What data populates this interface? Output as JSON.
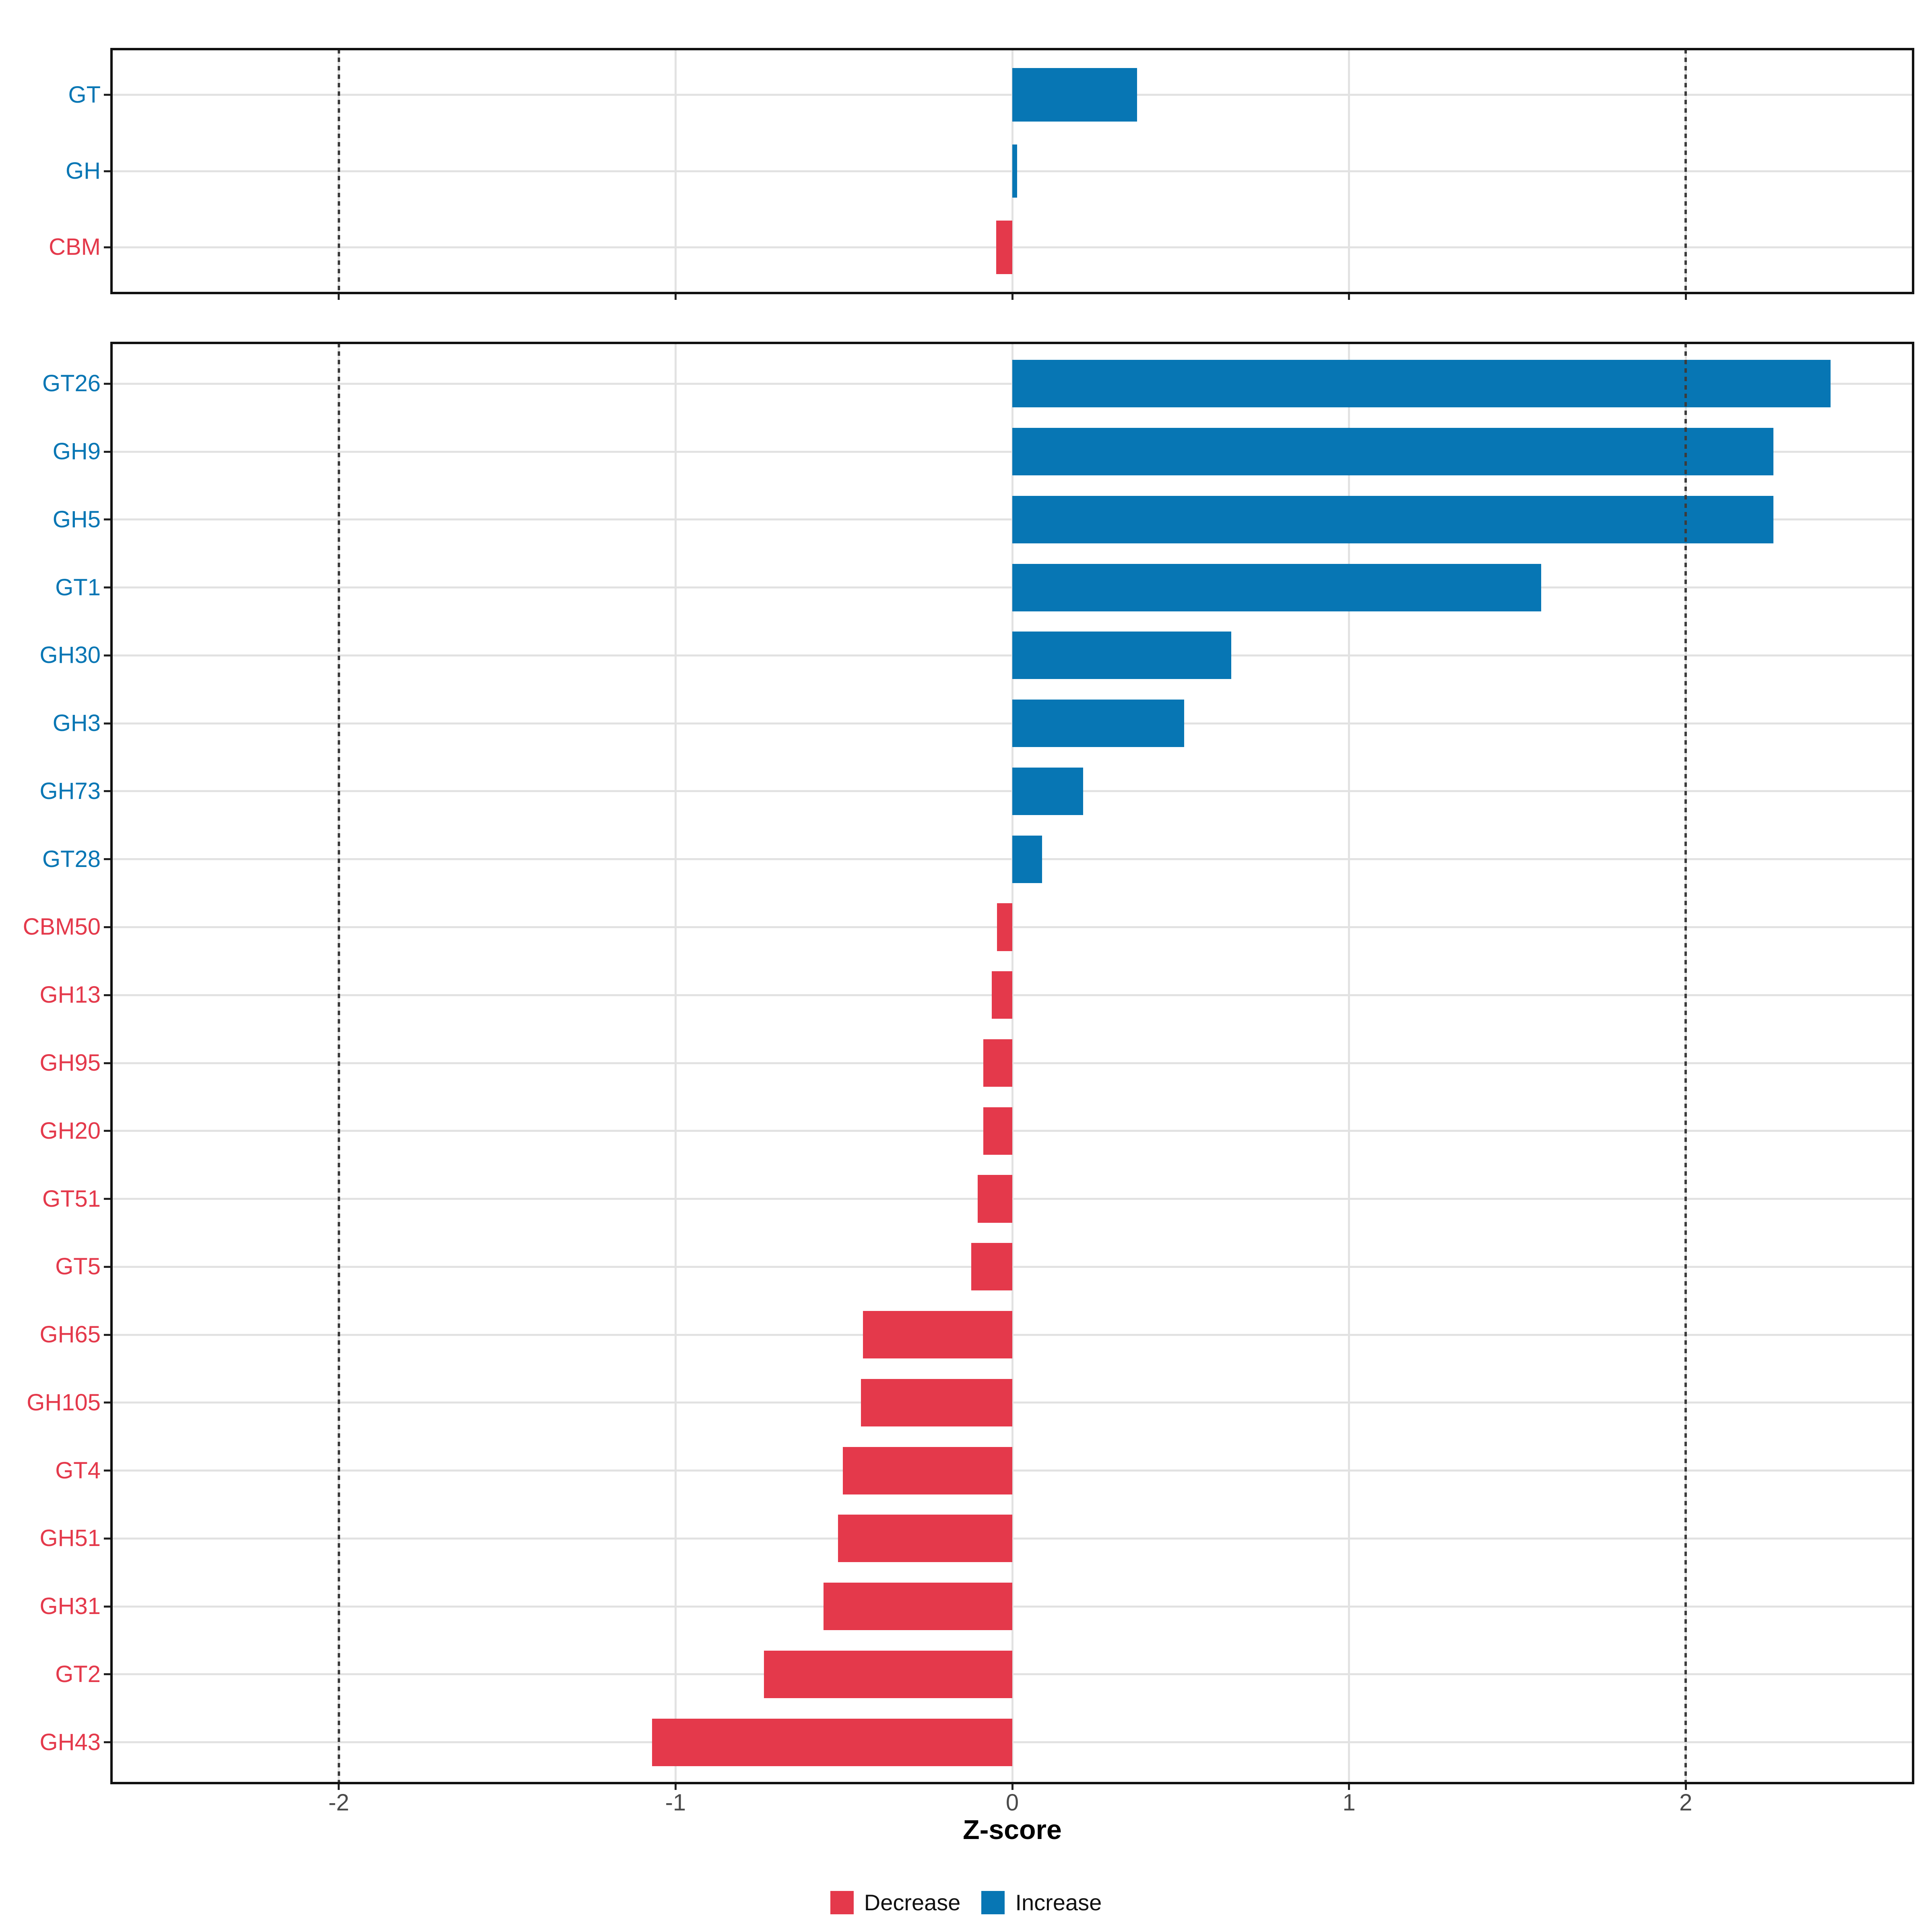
{
  "chart_data": {
    "type": "bar",
    "orientation": "horizontal",
    "title": "",
    "xlabel": "Z-score",
    "x_ticks": [
      -2,
      -1,
      0,
      1,
      2
    ],
    "xlim": [
      -2.675,
      2.675
    ],
    "reference_lines": [
      -2,
      2
    ],
    "grid": "on",
    "facets": [
      {
        "id": "facet_classes",
        "categories": [
          "GT",
          "GH",
          "CBM"
        ],
        "values": [
          0.37,
          0.014,
          -0.048
        ],
        "directions": [
          "Increase",
          "Increase",
          "Decrease"
        ]
      },
      {
        "id": "facet_families",
        "categories": [
          "GT26",
          "GH9",
          "GH5",
          "GT1",
          "GH30",
          "GH3",
          "GH73",
          "GT28",
          "CBM50",
          "GH13",
          "GH95",
          "GH20",
          "GT51",
          "GT5",
          "GH65",
          "GH105",
          "GT4",
          "GH51",
          "GH31",
          "GT2",
          "GH43"
        ],
        "values": [
          2.43,
          2.26,
          2.26,
          1.57,
          0.65,
          0.51,
          0.21,
          0.088,
          -0.046,
          -0.061,
          -0.086,
          -0.086,
          -0.103,
          -0.122,
          -0.443,
          -0.45,
          -0.503,
          -0.517,
          -0.561,
          -0.738,
          -1.07
        ],
        "directions": [
          "Increase",
          "Increase",
          "Increase",
          "Increase",
          "Increase",
          "Increase",
          "Increase",
          "Increase",
          "Decrease",
          "Decrease",
          "Decrease",
          "Decrease",
          "Decrease",
          "Decrease",
          "Decrease",
          "Decrease",
          "Decrease",
          "Decrease",
          "Decrease",
          "Decrease",
          "Decrease"
        ]
      }
    ],
    "legend": {
      "position": "bottom",
      "entries": [
        {
          "label": "Decrease",
          "color": "#E4394B"
        },
        {
          "label": "Increase",
          "color": "#0776B4"
        }
      ]
    },
    "colors": {
      "increase": "#0776B4",
      "decrease": "#E4394B",
      "gridline": "#E2E2E2",
      "axis_text": "#4A4A4A",
      "axis_line": "#111111",
      "reference_line": "#3C3C3C",
      "background": "#FFFFFF"
    }
  }
}
